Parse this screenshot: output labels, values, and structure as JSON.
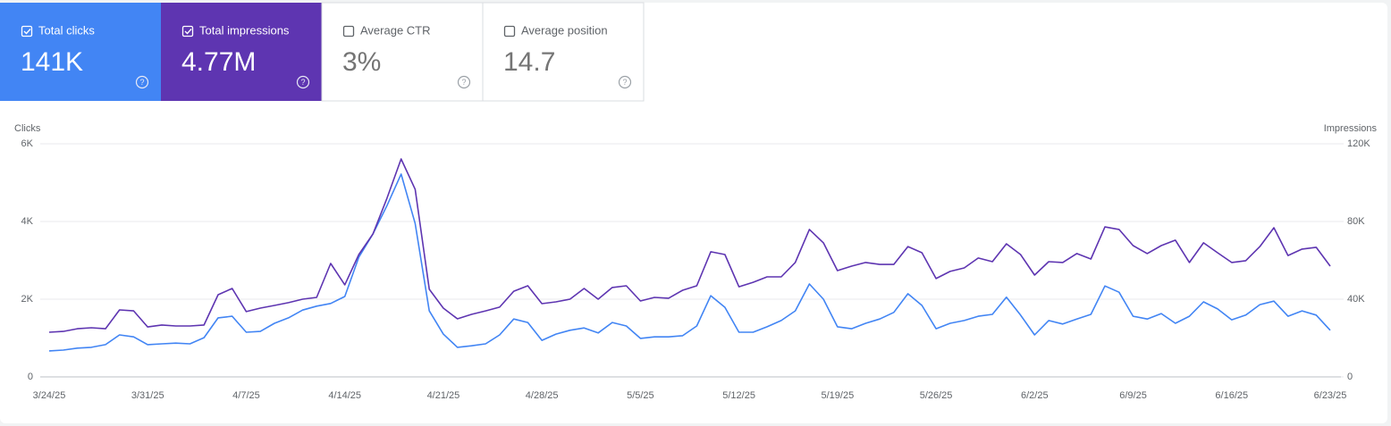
{
  "cards": [
    {
      "label": "Total clicks",
      "value": "141K",
      "checked": true,
      "color": "#4285f4"
    },
    {
      "label": "Total impressions",
      "value": "4.77M",
      "checked": true,
      "color": "#5e35b1"
    },
    {
      "label": "Average CTR",
      "value": "3%",
      "checked": false,
      "color": "#ffffff"
    },
    {
      "label": "Average position",
      "value": "14.7",
      "checked": false,
      "color": "#ffffff"
    }
  ],
  "chart_data": {
    "type": "line",
    "y_label": "Clicks",
    "y2_label": "Impressions",
    "x": [
      "3/24/25",
      "3/25/25",
      "3/26/25",
      "3/27/25",
      "3/28/25",
      "3/29/25",
      "3/30/25",
      "3/31/25",
      "4/1/25",
      "4/2/25",
      "4/3/25",
      "4/4/25",
      "4/5/25",
      "4/6/25",
      "4/7/25",
      "4/8/25",
      "4/9/25",
      "4/10/25",
      "4/11/25",
      "4/12/25",
      "4/13/25",
      "4/14/25",
      "4/15/25",
      "4/16/25",
      "4/17/25",
      "4/18/25",
      "4/19/25",
      "4/20/25",
      "4/21/25",
      "4/22/25",
      "4/23/25",
      "4/24/25",
      "4/25/25",
      "4/26/25",
      "4/27/25",
      "4/28/25",
      "4/29/25",
      "4/30/25",
      "5/1/25",
      "5/2/25",
      "5/3/25",
      "5/4/25",
      "5/5/25",
      "5/6/25",
      "5/7/25",
      "5/8/25",
      "5/9/25",
      "5/10/25",
      "5/11/25",
      "5/12/25",
      "5/13/25",
      "5/14/25",
      "5/15/25",
      "5/16/25",
      "5/17/25",
      "5/18/25",
      "5/19/25",
      "5/20/25",
      "5/21/25",
      "5/22/25",
      "5/23/25",
      "5/24/25",
      "5/25/25",
      "5/26/25",
      "5/27/25",
      "5/28/25",
      "5/29/25",
      "5/30/25",
      "5/31/25",
      "6/1/25",
      "6/2/25",
      "6/3/25",
      "6/4/25",
      "6/5/25",
      "6/6/25",
      "6/7/25",
      "6/8/25",
      "6/9/25",
      "6/10/25",
      "6/11/25",
      "6/12/25",
      "6/13/25",
      "6/14/25",
      "6/15/25",
      "6/16/25",
      "6/17/25",
      "6/18/25",
      "6/19/25",
      "6/20/25",
      "6/21/25",
      "6/22/25",
      "6/23/25"
    ],
    "series": [
      {
        "name": "Total clicks",
        "color": "#4285f4",
        "values": [
          670,
          690,
          740,
          760,
          830,
          1080,
          1030,
          830,
          850,
          870,
          850,
          1010,
          1520,
          1560,
          1150,
          1170,
          1380,
          1520,
          1720,
          1820,
          1890,
          2070,
          3080,
          3680,
          4410,
          5220,
          3950,
          1700,
          1100,
          760,
          800,
          850,
          1080,
          1490,
          1400,
          940,
          1100,
          1200,
          1260,
          1130,
          1400,
          1310,
          990,
          1030,
          1030,
          1060,
          1310,
          2090,
          1790,
          1150,
          1150,
          1290,
          1450,
          1700,
          2390,
          2000,
          1290,
          1240,
          1380,
          1490,
          1660,
          2140,
          1840,
          1240,
          1380,
          1450,
          1560,
          1610,
          2050,
          1590,
          1080,
          1450,
          1360,
          1490,
          1610,
          2340,
          2180,
          1560,
          1490,
          1630,
          1380,
          1560,
          1930,
          1750,
          1470,
          1590,
          1860,
          1950,
          1560,
          1700,
          1590,
          1200
        ]
      },
      {
        "name": "Total impressions",
        "color": "#5e35b1",
        "axis": "y2",
        "values": [
          23000,
          23400,
          24800,
          25300,
          24800,
          34500,
          34000,
          25700,
          26700,
          26200,
          26200,
          26700,
          42300,
          45500,
          33600,
          35400,
          36800,
          38200,
          40000,
          40900,
          58400,
          47400,
          63000,
          73600,
          92000,
          112200,
          96600,
          45100,
          35400,
          29900,
          32200,
          34000,
          35900,
          44100,
          46900,
          37700,
          38600,
          40000,
          45500,
          40000,
          46000,
          46900,
          39100,
          40900,
          40500,
          44600,
          46900,
          64400,
          63000,
          46400,
          48700,
          51500,
          51500,
          58900,
          75900,
          69000,
          54700,
          57000,
          58900,
          57900,
          57900,
          67100,
          63900,
          50600,
          54300,
          56100,
          61200,
          59300,
          68500,
          63000,
          52400,
          59300,
          58900,
          63500,
          60700,
          77200,
          75900,
          67600,
          63500,
          67600,
          70400,
          58900,
          69000,
          63900,
          58900,
          59800,
          67100,
          76800,
          62500,
          65800,
          66700,
          57000
        ]
      }
    ],
    "ylim": [
      0,
      6000
    ],
    "yticks": [
      0,
      {
        "value": 2000,
        "label": "2K"
      },
      {
        "value": 4000,
        "label": "4K"
      },
      {
        "value": 6000,
        "label": "6K"
      }
    ],
    "y2lim": [
      0,
      120000
    ],
    "y2ticks": [
      0,
      {
        "value": 40000,
        "label": "40K"
      },
      {
        "value": 80000,
        "label": "80K"
      },
      {
        "value": 120000,
        "label": "120K"
      }
    ],
    "grid": true
  }
}
